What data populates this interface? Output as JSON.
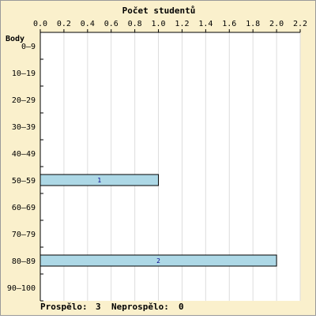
{
  "chart_data": {
    "type": "bar",
    "orientation": "horizontal",
    "title": "Počet studentů",
    "ylabel": "Body",
    "categories": [
      "0–9",
      "10–19",
      "20–29",
      "30–39",
      "40–49",
      "50–59",
      "60–69",
      "70–79",
      "80–89",
      "90–100"
    ],
    "values": [
      0,
      0,
      0,
      0,
      0,
      1,
      0,
      0,
      2,
      0
    ],
    "data_labels": [
      "",
      "",
      "",
      "",
      "",
      "1",
      "",
      "",
      "2",
      ""
    ],
    "xlim": [
      0,
      2.2
    ],
    "xticks": [
      "0.0",
      "0.2",
      "0.4",
      "0.6",
      "0.8",
      "1.0",
      "1.2",
      "1.4",
      "1.6",
      "1.8",
      "2.0",
      "2.2"
    ],
    "x_axis_position": "top",
    "grid": "vertical",
    "colors": {
      "background": "#faf0cc",
      "plot": "#ffffff",
      "bar": "#add8e6",
      "bar_border": "#000000",
      "bar_label": "#00008b",
      "grid": "#dddddd"
    }
  },
  "footer": {
    "passed_label": "Prospělo:",
    "passed_value": "3",
    "failed_label": "Neprospělo:",
    "failed_value": "0"
  }
}
